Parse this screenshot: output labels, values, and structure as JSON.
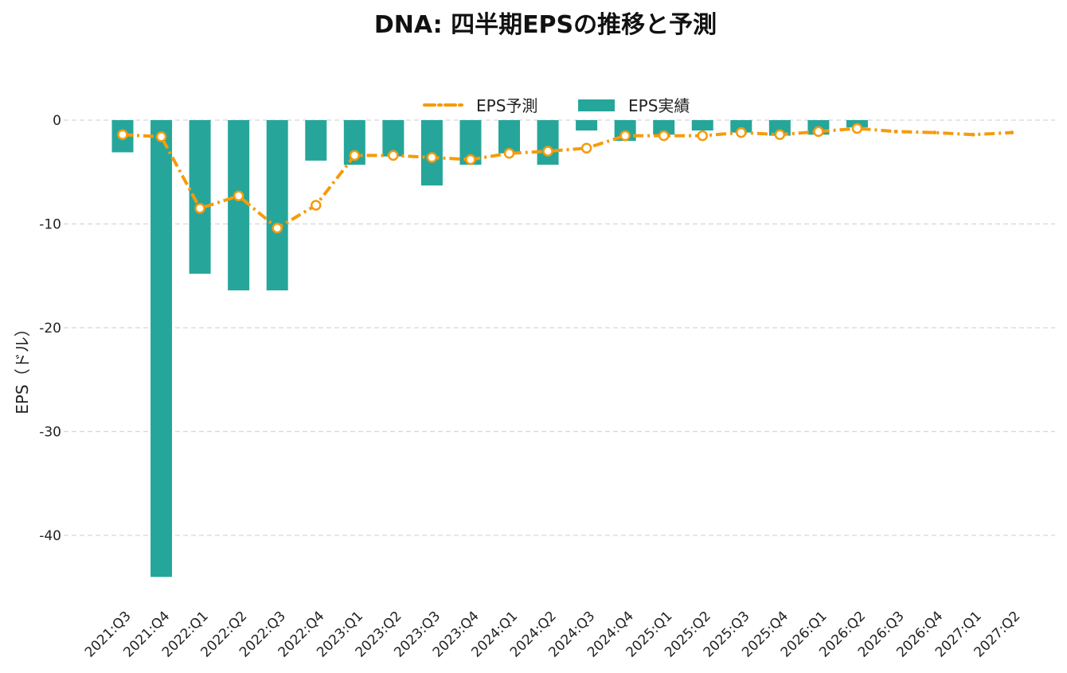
{
  "chart_data": {
    "type": "bar",
    "title": "DNA: 四半期EPSの推移と予測",
    "xlabel": "",
    "ylabel": "EPS（ドル）",
    "ylim": [
      -44.5,
      1.5
    ],
    "yticks": [
      0,
      -10,
      -20,
      -30,
      -40
    ],
    "grid": true,
    "legend_position": "top-center",
    "categories": [
      "2021:Q3",
      "2021:Q4",
      "2022:Q1",
      "2022:Q2",
      "2022:Q3",
      "2022:Q4",
      "2023:Q1",
      "2023:Q2",
      "2023:Q3",
      "2023:Q4",
      "2024:Q1",
      "2024:Q2",
      "2024:Q3",
      "2024:Q4",
      "2025:Q1",
      "2025:Q2",
      "2025:Q3",
      "2025:Q4",
      "2026:Q1",
      "2026:Q2",
      "2026:Q3",
      "2026:Q4",
      "2027:Q1",
      "2027:Q2"
    ],
    "series": [
      {
        "name": "EPS予測",
        "kind": "line",
        "color": "#f59b0c",
        "values": [
          -1.4,
          -1.6,
          -8.5,
          -7.3,
          -10.4,
          -8.2,
          -3.4,
          -3.4,
          -3.6,
          -3.8,
          -3.2,
          -3.0,
          -2.7,
          -1.5,
          -1.5,
          -1.5,
          -1.2,
          -1.4,
          -1.1,
          -0.8,
          -1.1,
          -1.2,
          -1.4,
          -1.2
        ]
      },
      {
        "name": "EPS実績",
        "kind": "bar",
        "color": "#26a69a",
        "values": [
          -3.1,
          -44.0,
          -14.8,
          -16.4,
          -16.4,
          -3.9,
          -4.3,
          -3.5,
          -6.3,
          -4.3,
          -3.2,
          -4.3,
          -1.0,
          -2.0,
          -1.4,
          -1.0,
          -1.2,
          -1.5,
          -1.4,
          -0.7,
          null,
          null,
          null,
          null
        ]
      }
    ]
  }
}
